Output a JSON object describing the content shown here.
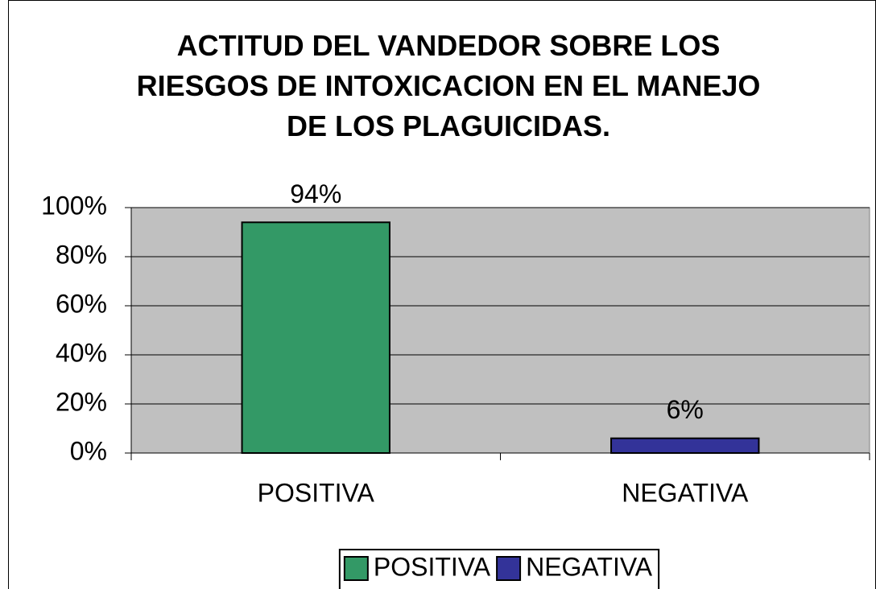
{
  "chart_data": {
    "type": "bar",
    "title": "ACTITUD DEL VANDEDOR SOBRE LOS RIESGOS DE INTOXICACION EN EL MANEJO DE LOS PLAGUICIDAS.",
    "categories": [
      "POSITIVA",
      "NEGATIVA"
    ],
    "values": [
      94,
      6
    ],
    "value_labels": [
      "94%",
      "6%"
    ],
    "colors": [
      "#339966",
      "#333399"
    ],
    "ylim": [
      0,
      100
    ],
    "yticks": [
      {
        "value": 0,
        "label": "0%"
      },
      {
        "value": 20,
        "label": "20%"
      },
      {
        "value": 40,
        "label": "40%"
      },
      {
        "value": 60,
        "label": "60%"
      },
      {
        "value": 80,
        "label": "80%"
      },
      {
        "value": 100,
        "label": "100%"
      }
    ],
    "grid": true,
    "legend": "bottom"
  }
}
